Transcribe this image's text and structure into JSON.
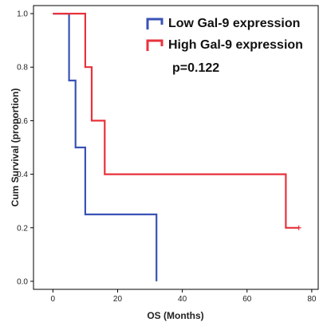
{
  "chart_data": {
    "type": "line",
    "subtype": "kaplan-meier step",
    "xlabel": "OS (Months)",
    "ylabel": "Cum Survival (proportion)",
    "xlim": [
      -6,
      82
    ],
    "ylim": [
      -0.03,
      1.03
    ],
    "x_ticks": [
      0,
      20,
      40,
      60,
      80
    ],
    "y_ticks": [
      0.0,
      0.2,
      0.4,
      0.6,
      0.8,
      1.0
    ],
    "x_tick_labels": [
      "0",
      "20",
      "40",
      "60",
      "80"
    ],
    "y_tick_labels": [
      "0.0",
      "0.2",
      "0.4",
      "0.6",
      "0.8",
      "1.0"
    ],
    "grid": false,
    "legend_position": "top-right",
    "annotation": "p=0.122",
    "series": [
      {
        "name": "Low Gal-9 expression",
        "color": "#3a52b5",
        "points": [
          [
            0,
            1.0
          ],
          [
            5,
            1.0
          ],
          [
            5,
            0.75
          ],
          [
            7,
            0.75
          ],
          [
            7,
            0.5
          ],
          [
            10,
            0.5
          ],
          [
            10,
            0.25
          ],
          [
            32,
            0.25
          ],
          [
            32,
            0.0
          ]
        ],
        "censored": []
      },
      {
        "name": "High Gal-9 expression",
        "color": "#e8323c",
        "points": [
          [
            0,
            1.0
          ],
          [
            10,
            1.0
          ],
          [
            10,
            0.8
          ],
          [
            12,
            0.8
          ],
          [
            12,
            0.6
          ],
          [
            16,
            0.6
          ],
          [
            16,
            0.4
          ],
          [
            72,
            0.4
          ],
          [
            72,
            0.2
          ],
          [
            76,
            0.2
          ]
        ],
        "censored": [
          [
            76,
            0.2
          ]
        ]
      }
    ]
  }
}
